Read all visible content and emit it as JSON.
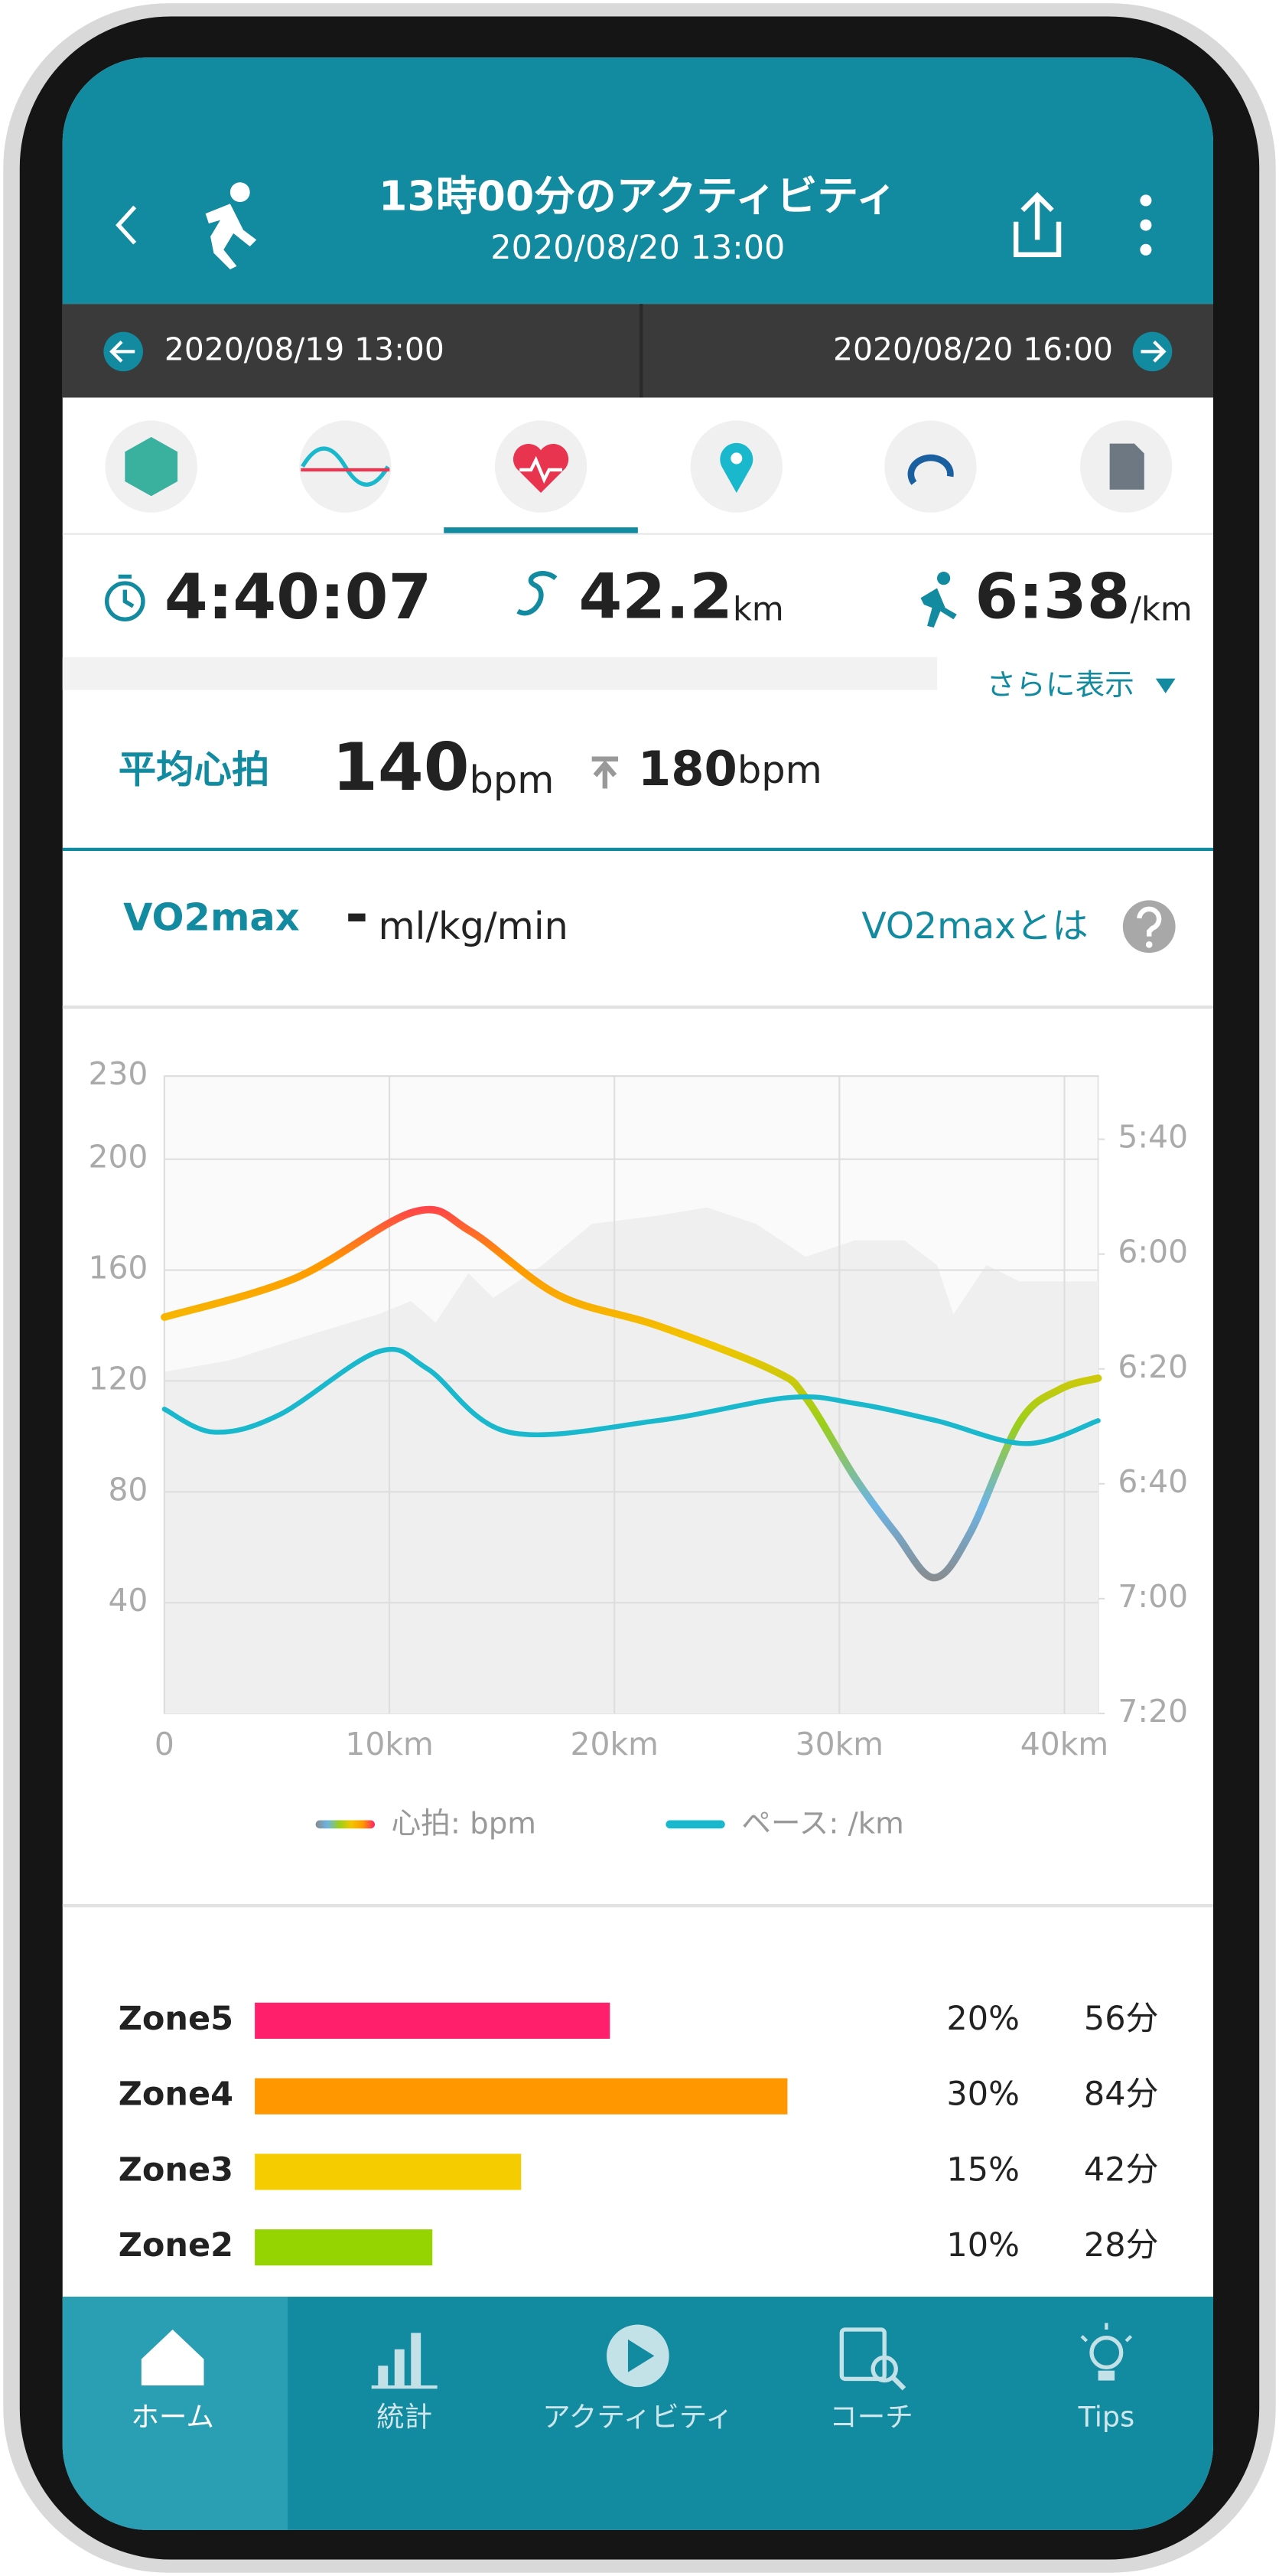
{
  "header": {
    "title": "13時00分のアクティビティ",
    "subtitle": "2020/08/20  13:00"
  },
  "date_nav": {
    "prev": "2020/08/19  13:00",
    "next": "2020/08/20  16:00"
  },
  "stats": {
    "time": "4:40:07",
    "distance": "42.2",
    "distance_unit": "km",
    "pace": "6:38",
    "pace_unit": "/km",
    "more": "さらに表示"
  },
  "heart_rate": {
    "label": "平均心拍",
    "average": "140",
    "average_unit": "bpm",
    "max": "180",
    "max_unit": "bpm"
  },
  "vo2max": {
    "label": "VO2max",
    "value": "-",
    "unit": "ml/kg/min",
    "link": "VO2maxとは"
  },
  "chart_data": {
    "type": "line",
    "xlim": [
      0,
      41.5
    ],
    "xticks": [
      0,
      {
        "value": 10,
        "label": "10km"
      },
      {
        "value": 20,
        "label": "20km"
      },
      {
        "value": 30,
        "label": "30km"
      },
      {
        "value": 40,
        "label": "40km"
      }
    ],
    "ylim": [
      0,
      230
    ],
    "yticks": [
      40,
      80,
      120,
      160,
      200,
      230
    ],
    "y2lim": [
      440,
      329
    ],
    "y2ticks": [
      {
        "value": 340,
        "label": "5:40"
      },
      {
        "value": 360,
        "label": "6:00"
      },
      {
        "value": 380,
        "label": "6:20"
      },
      {
        "value": 400,
        "label": "6:40"
      },
      {
        "value": 420,
        "label": "7:00"
      },
      {
        "value": 440,
        "label": "7:20"
      }
    ],
    "grid": true,
    "series": [
      {
        "name": "心拍: bpm",
        "gradient": [
          "#ff1f6b",
          "#ff9800",
          "#f2c500",
          "#9bcf1a",
          "#6cb4e4",
          "#8a8a8a"
        ],
        "x": [
          0,
          5.8,
          11.1,
          13.6,
          17.5,
          21.9,
          27,
          28.5,
          30.7,
          32.5,
          34.2,
          35.8,
          38,
          39.8,
          41.5
        ],
        "values": [
          143,
          157,
          181,
          174,
          151,
          140,
          124,
          114,
          85,
          65,
          49,
          65,
          105,
          117,
          121
        ]
      },
      {
        "name": "ペース: /km",
        "axis": "y2",
        "color": "#1ab8cc",
        "x": [
          0,
          2.2,
          5.1,
          9.5,
          11.7,
          15.3,
          21.9,
          27.7,
          30.7,
          34.3,
          38.3,
          41.5
        ],
        "values": [
          387,
          391,
          388,
          377,
          380,
          391,
          389,
          385,
          386,
          389,
          393,
          389
        ]
      }
    ]
  },
  "zones": [
    {
      "name": "Zone5",
      "percent": 20,
      "percent_label": "20%",
      "minutes": "56分",
      "color": "#ff1f6b"
    },
    {
      "name": "Zone4",
      "percent": 30,
      "percent_label": "30%",
      "minutes": "84分",
      "color": "#ff9800"
    },
    {
      "name": "Zone3",
      "percent": 15,
      "percent_label": "15%",
      "minutes": "42分",
      "color": "#f5cc00"
    },
    {
      "name": "Zone2",
      "percent": 10,
      "percent_label": "10%",
      "minutes": "28分",
      "color": "#96d400"
    }
  ],
  "bottom_nav": [
    "ホーム",
    "統計",
    "アクティビティ",
    "コーチ",
    "Tips"
  ]
}
